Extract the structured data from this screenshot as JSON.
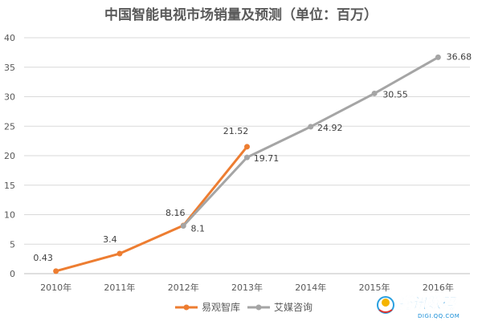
{
  "chart_data": {
    "type": "line",
    "title": "中国智能电视市场销量及预测（单位：百万）",
    "categories": [
      "2010年",
      "2011年",
      "2012年",
      "2013年",
      "2014年",
      "2015年",
      "2016年"
    ],
    "ylim": [
      0,
      40
    ],
    "yticks": [
      0,
      5,
      10,
      15,
      20,
      25,
      30,
      35,
      40
    ],
    "grid": true,
    "legend_position": "bottom",
    "series": [
      {
        "name": "易观智库",
        "color": "#ED7D31",
        "points": [
          {
            "category": "2010年",
            "value": 0.43,
            "label": "0.43"
          },
          {
            "category": "2011年",
            "value": 3.4,
            "label": "3.4"
          },
          {
            "category": "2012年",
            "value": 8.16,
            "label": "8.16"
          },
          {
            "category": "2013年",
            "value": 21.52,
            "label": "21.52"
          }
        ]
      },
      {
        "name": "艾媒咨询",
        "color": "#A5A5A5",
        "points": [
          {
            "category": "2012年",
            "value": 8.1,
            "label": "8.1"
          },
          {
            "category": "2013年",
            "value": 19.71,
            "label": "19.71"
          },
          {
            "category": "2014年",
            "value": 24.92,
            "label": "24.92"
          },
          {
            "category": "2015年",
            "value": 30.55,
            "label": "30.55"
          },
          {
            "category": "2016年",
            "value": 36.68,
            "label": "36.68"
          }
        ]
      }
    ]
  },
  "watermark": {
    "brand": "腾讯数码",
    "url": "DIGI.QQ.COM"
  }
}
